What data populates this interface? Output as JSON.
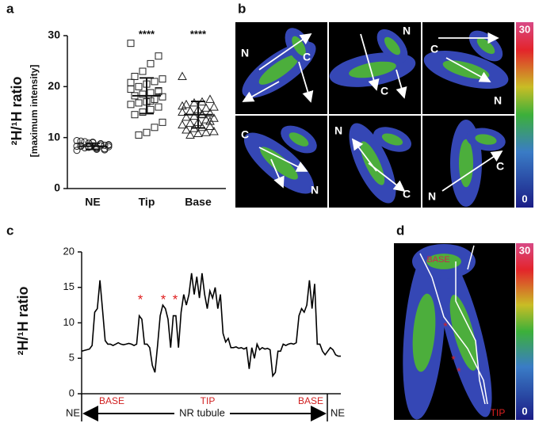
{
  "chart_data": [
    {
      "type": "dot",
      "panel": "a",
      "y_label": "²H/¹H ratio",
      "y_sublabel": "[maximum intensity]",
      "categories": [
        "NE",
        "Tip",
        "Base"
      ],
      "ylim": [
        0,
        30
      ],
      "yticks": [
        0,
        10,
        20,
        30
      ],
      "groups": [
        {
          "marker": "circle",
          "values": [
            7.5,
            7.8,
            8,
            8.2,
            8.3,
            8.5,
            8.7,
            9,
            9.2,
            9.4,
            7.6,
            7.9,
            8.1,
            8.4,
            8.6,
            8.8,
            9.1,
            8.0,
            8.3,
            8.5,
            7.7,
            8.9,
            9.3,
            8.2,
            8.4
          ],
          "mean": 8.3,
          "sd": 0.6
        },
        {
          "marker": "square",
          "values": [
            28.5,
            26,
            24.5,
            23,
            22,
            21.5,
            21,
            20.5,
            20,
            19.5,
            19,
            18.8,
            18.5,
            18.2,
            18,
            17.5,
            17,
            16.8,
            16.5,
            16,
            15.5,
            15,
            14.5,
            13,
            12,
            11,
            10.5,
            20.8,
            19.2,
            17.2
          ],
          "mean": 18.2,
          "sd": 3.5
        },
        {
          "marker": "triangle",
          "values": [
            22,
            17.5,
            17,
            16.8,
            16.5,
            16,
            15.8,
            15.5,
            15.2,
            15,
            14.8,
            14.5,
            14.2,
            14,
            13.8,
            13.5,
            13,
            12.8,
            12.5,
            12.2,
            12,
            11.8,
            11.5,
            11.2,
            11,
            10.8,
            10.5,
            16.2,
            13.2,
            14.6
          ],
          "mean": 14.5,
          "sd": 2.6
        }
      ],
      "annotations": [
        {
          "category": 1,
          "text": "****"
        },
        {
          "category": 2,
          "text": "****"
        }
      ]
    },
    {
      "type": "line",
      "panel": "c",
      "y_label": "²H/¹H ratio",
      "ylim": [
        0,
        20
      ],
      "yticks": [
        0,
        5,
        10,
        15,
        20
      ],
      "color": "#000000",
      "values": [
        6,
        6.1,
        6.2,
        6.3,
        6.8,
        11.5,
        12,
        16,
        11.8,
        7.5,
        7,
        7,
        6.8,
        7,
        7.2,
        7,
        6.9,
        7,
        7.1,
        7,
        6.8,
        7,
        11,
        10.5,
        7,
        7,
        6.5,
        4,
        3,
        6.8,
        11,
        12.5,
        12,
        10.5,
        6.5,
        11,
        11,
        6.5,
        11.5,
        14,
        12.5,
        14,
        17,
        14,
        16.5,
        13.5,
        17,
        14,
        12,
        14.5,
        13.5,
        15,
        12,
        14,
        8.5,
        7.3,
        7.8,
        6.5,
        6.5,
        6.6,
        6.4,
        6.5,
        6.3,
        6.5,
        3.5,
        6.5,
        5,
        7,
        6.2,
        6.5,
        6.3,
        6.4,
        6.2,
        2.5,
        3,
        6,
        6,
        7,
        6.8,
        7,
        7.1,
        7,
        7.2,
        11,
        12,
        11.5,
        12.5,
        16,
        12,
        15.5,
        7,
        7,
        6,
        5.5,
        6,
        6.5,
        6.2,
        5.5,
        5.3,
        5.3
      ],
      "peak_marks": [
        "*",
        "*",
        "*"
      ],
      "regions": [
        "BASE",
        "TIP",
        "BASE"
      ],
      "ends": [
        "NE",
        "NE"
      ],
      "axis_label": "NR tubule"
    }
  ],
  "images": [
    {
      "panel": "b",
      "tiles": [
        [
          "N",
          "C"
        ],
        [
          "N",
          "C"
        ],
        [
          "C",
          "N"
        ],
        [
          "C",
          "N"
        ],
        [
          "N",
          "C"
        ],
        [
          "N",
          "C"
        ]
      ],
      "colorbar": {
        "max": 30,
        "min": 0
      }
    },
    {
      "panel": "d",
      "labels": [
        "BASE",
        "TIP"
      ],
      "marks": [
        "*",
        "*",
        "*"
      ],
      "colorbar": {
        "max": 30,
        "min": 0
      }
    }
  ]
}
